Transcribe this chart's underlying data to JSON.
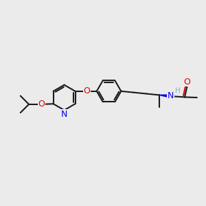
{
  "background_color": "#ebebeb",
  "line_color": "#1a1a1a",
  "N_color": "#0000ee",
  "O_color": "#dd0000",
  "H_color": "#7fb3c8",
  "bond_lw": 1.5,
  "dbo": 0.038,
  "figsize": [
    3.0,
    3.0
  ],
  "dpi": 100,
  "xlim": [
    -0.3,
    4.5
  ],
  "ylim": [
    0.5,
    3.2
  ]
}
